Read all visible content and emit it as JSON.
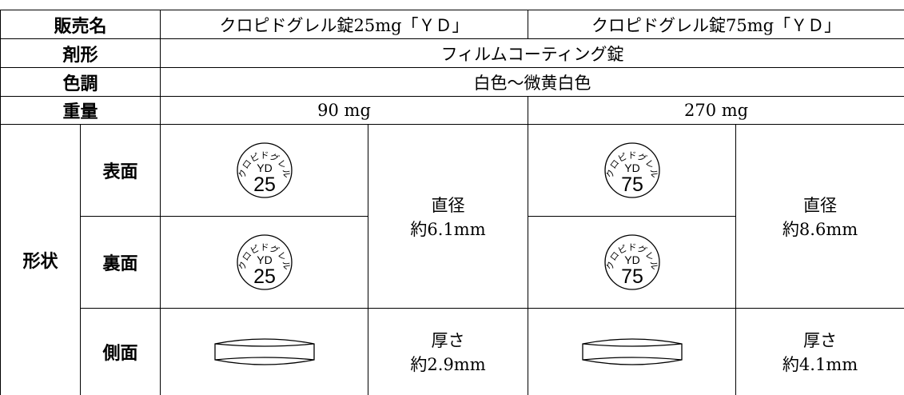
{
  "header": {
    "label": "販売名",
    "products": [
      "クロピドグレル錠25mg「ＹＤ」",
      "クロピドグレル錠75mg「ＹＤ」"
    ]
  },
  "dosage_form": {
    "label": "剤形",
    "value": "フィルムコーティング錠"
  },
  "color": {
    "label": "色調",
    "value": "白色～微黄白色"
  },
  "weight": {
    "label": "重量",
    "values": [
      "90 mg",
      "270 mg"
    ]
  },
  "shape": {
    "label": "形状",
    "faces": [
      "表面",
      "裏面",
      "側面"
    ],
    "imprints": [
      {
        "arc": "クロピドグレル",
        "code": "YD",
        "strength": "25"
      },
      {
        "arc": "クロピドグレル",
        "code": "YD",
        "strength": "75"
      }
    ],
    "diameter": [
      {
        "label": "直径",
        "value": "約6.1mm"
      },
      {
        "label": "直径",
        "value": "約8.6mm"
      }
    ],
    "thickness": [
      {
        "label": "厚さ",
        "value": "約2.9mm"
      },
      {
        "label": "厚さ",
        "value": "約4.1mm"
      }
    ]
  }
}
